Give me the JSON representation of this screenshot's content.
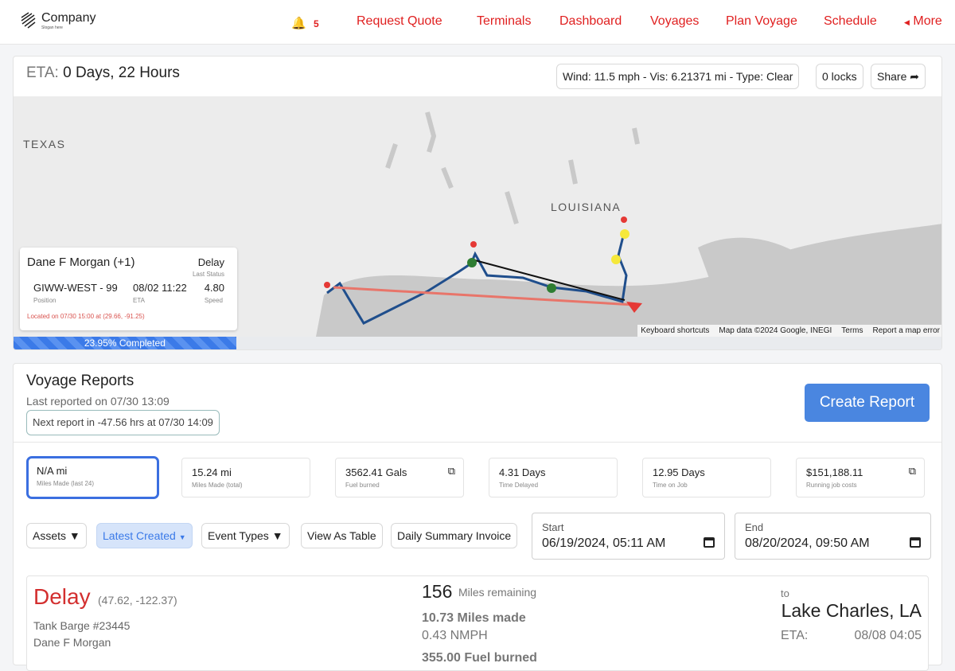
{
  "header": {
    "company": "Company",
    "slogan": "Slogan here",
    "notifications": "5",
    "nav": [
      "Request Quote",
      "Terminals",
      "Dashboard",
      "Voyages",
      "Plan Voyage",
      "Schedule"
    ],
    "more": "More",
    "accent": "#e02020"
  },
  "eta": {
    "label": "ETA:",
    "value": "0 Days, 22 Hours",
    "weather": "Wind: 11.5 mph - Vis: 6.21371 mi - Type: Clear",
    "locks": "0 locks",
    "share": "Share"
  },
  "map": {
    "labels": [
      "TEXAS",
      "LOUISIANA"
    ],
    "footer": [
      "Keyboard shortcuts",
      "Map data ©2024 Google, INEGI",
      "Terms",
      "Report a map error"
    ]
  },
  "info": {
    "name": "Dane F Morgan (+1)",
    "status": "Delay",
    "status_label": "Last Status",
    "position": "GIWW-WEST - 99",
    "position_label": "Position",
    "eta": "08/02 11:22",
    "eta_label": "ETA",
    "speed": "4.80",
    "speed_label": "Speed",
    "located": "Located on 07/30 15:00 at (29.66, -91.25)"
  },
  "progress": {
    "percent": 23.95,
    "label": "23.95% Completed"
  },
  "reports": {
    "title": "Voyage Reports",
    "last": "Last reported on 07/30 13:09",
    "next": "Next report in -47.56 hrs at 07/30 14:09",
    "create": "Create Report"
  },
  "stats": [
    {
      "v": "N/A mi",
      "l": "Miles Made (last 24)"
    },
    {
      "v": "15.24 mi",
      "l": "Miles Made (total)"
    },
    {
      "v": "3562.41 Gals",
      "l": "Fuel burned",
      "ext": true
    },
    {
      "v": "4.31 Days",
      "l": "Time Delayed"
    },
    {
      "v": "12.95 Days",
      "l": "Time on Job"
    },
    {
      "v": "$151,188.11",
      "l": "Running job costs",
      "ext": true
    }
  ],
  "filters": {
    "assets": "Assets",
    "latest": "Latest Created",
    "events": "Event Types",
    "table": "View As Table",
    "invoice": "Daily Summary Invoice",
    "start_label": "Start",
    "start": "06/19/2024, 05:11 AM",
    "end_label": "End",
    "end": "08/20/2024, 09:50 AM"
  },
  "event": {
    "type": "Delay",
    "coords": "(47.62, -122.37)",
    "asset": "Tank Barge #23445",
    "person": "Dane F Morgan",
    "remaining": "156",
    "remaining_label": "Miles remaining",
    "made": "10.73 Miles made",
    "nmph": "0.43 NMPH",
    "fuel": "355.00 Fuel burned",
    "to": "to",
    "dest": "Lake Charles, LA",
    "eta_label": "ETA:",
    "eta": "08/08 04:05"
  }
}
